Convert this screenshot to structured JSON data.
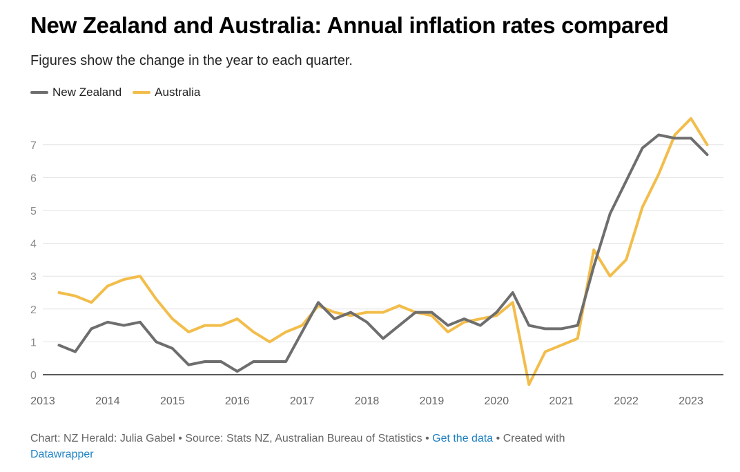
{
  "title": "New Zealand and Australia: Annual inflation rates compared",
  "subtitle": "Figures show the change in the year to each quarter.",
  "legend": [
    {
      "name": "New Zealand",
      "color": "#6e6e6e"
    },
    {
      "name": "Australia",
      "color": "#f2bd4b"
    }
  ],
  "footer": {
    "credit": "Chart: NZ Herald: Julia Gabel",
    "separator": " • ",
    "source": "Source: Stats NZ, Australian Bureau of Statistics",
    "get_data": "Get the data",
    "created_with": "Created with",
    "tool": "Datawrapper"
  },
  "chart_data": {
    "type": "line",
    "title": "New Zealand and Australia: Annual inflation rates compared",
    "subtitle": "Figures show the change in the year to each quarter.",
    "x_tick_labels": [
      "2013",
      "2014",
      "2015",
      "2016",
      "2017",
      "2018",
      "2019",
      "2020",
      "2021",
      "2022",
      "2023"
    ],
    "y_ticks": [
      0,
      1,
      2,
      3,
      4,
      5,
      6,
      7
    ],
    "ylim": [
      0,
      7.5
    ],
    "xlim": [
      2013.0,
      2023.5
    ],
    "grid": true,
    "legend_position": "top-left",
    "x": [
      2013.25,
      2013.5,
      2013.75,
      2014.0,
      2014.25,
      2014.5,
      2014.75,
      2015.0,
      2015.25,
      2015.5,
      2015.75,
      2016.0,
      2016.25,
      2016.5,
      2016.75,
      2017.0,
      2017.25,
      2017.5,
      2017.75,
      2018.0,
      2018.25,
      2018.5,
      2018.75,
      2019.0,
      2019.25,
      2019.5,
      2019.75,
      2020.0,
      2020.25,
      2020.5,
      2020.75,
      2021.0,
      2021.25,
      2021.5,
      2021.75,
      2022.0,
      2022.25,
      2022.5,
      2022.75,
      2023.0,
      2023.25
    ],
    "series": [
      {
        "name": "New Zealand",
        "color": "#6e6e6e",
        "values": [
          0.9,
          0.7,
          1.4,
          1.6,
          1.5,
          1.6,
          1.0,
          0.8,
          0.3,
          0.4,
          0.4,
          0.1,
          0.4,
          0.4,
          0.4,
          1.3,
          2.2,
          1.7,
          1.9,
          1.6,
          1.1,
          1.5,
          1.9,
          1.9,
          1.5,
          1.7,
          1.5,
          1.9,
          2.5,
          1.5,
          1.4,
          1.4,
          1.5,
          3.3,
          4.9,
          5.9,
          6.9,
          7.3,
          7.2,
          7.2,
          6.7
        ]
      },
      {
        "name": "Australia",
        "color": "#f2bd4b",
        "values": [
          2.5,
          2.4,
          2.2,
          2.7,
          2.9,
          3.0,
          2.3,
          1.7,
          1.3,
          1.5,
          1.5,
          1.7,
          1.3,
          1.0,
          1.3,
          1.5,
          2.1,
          1.9,
          1.8,
          1.9,
          1.9,
          2.1,
          1.9,
          1.8,
          1.3,
          1.6,
          1.7,
          1.8,
          2.2,
          -0.3,
          0.7,
          0.9,
          1.1,
          3.8,
          3.0,
          3.5,
          5.1,
          6.1,
          7.3,
          7.8,
          7.0
        ]
      }
    ]
  }
}
